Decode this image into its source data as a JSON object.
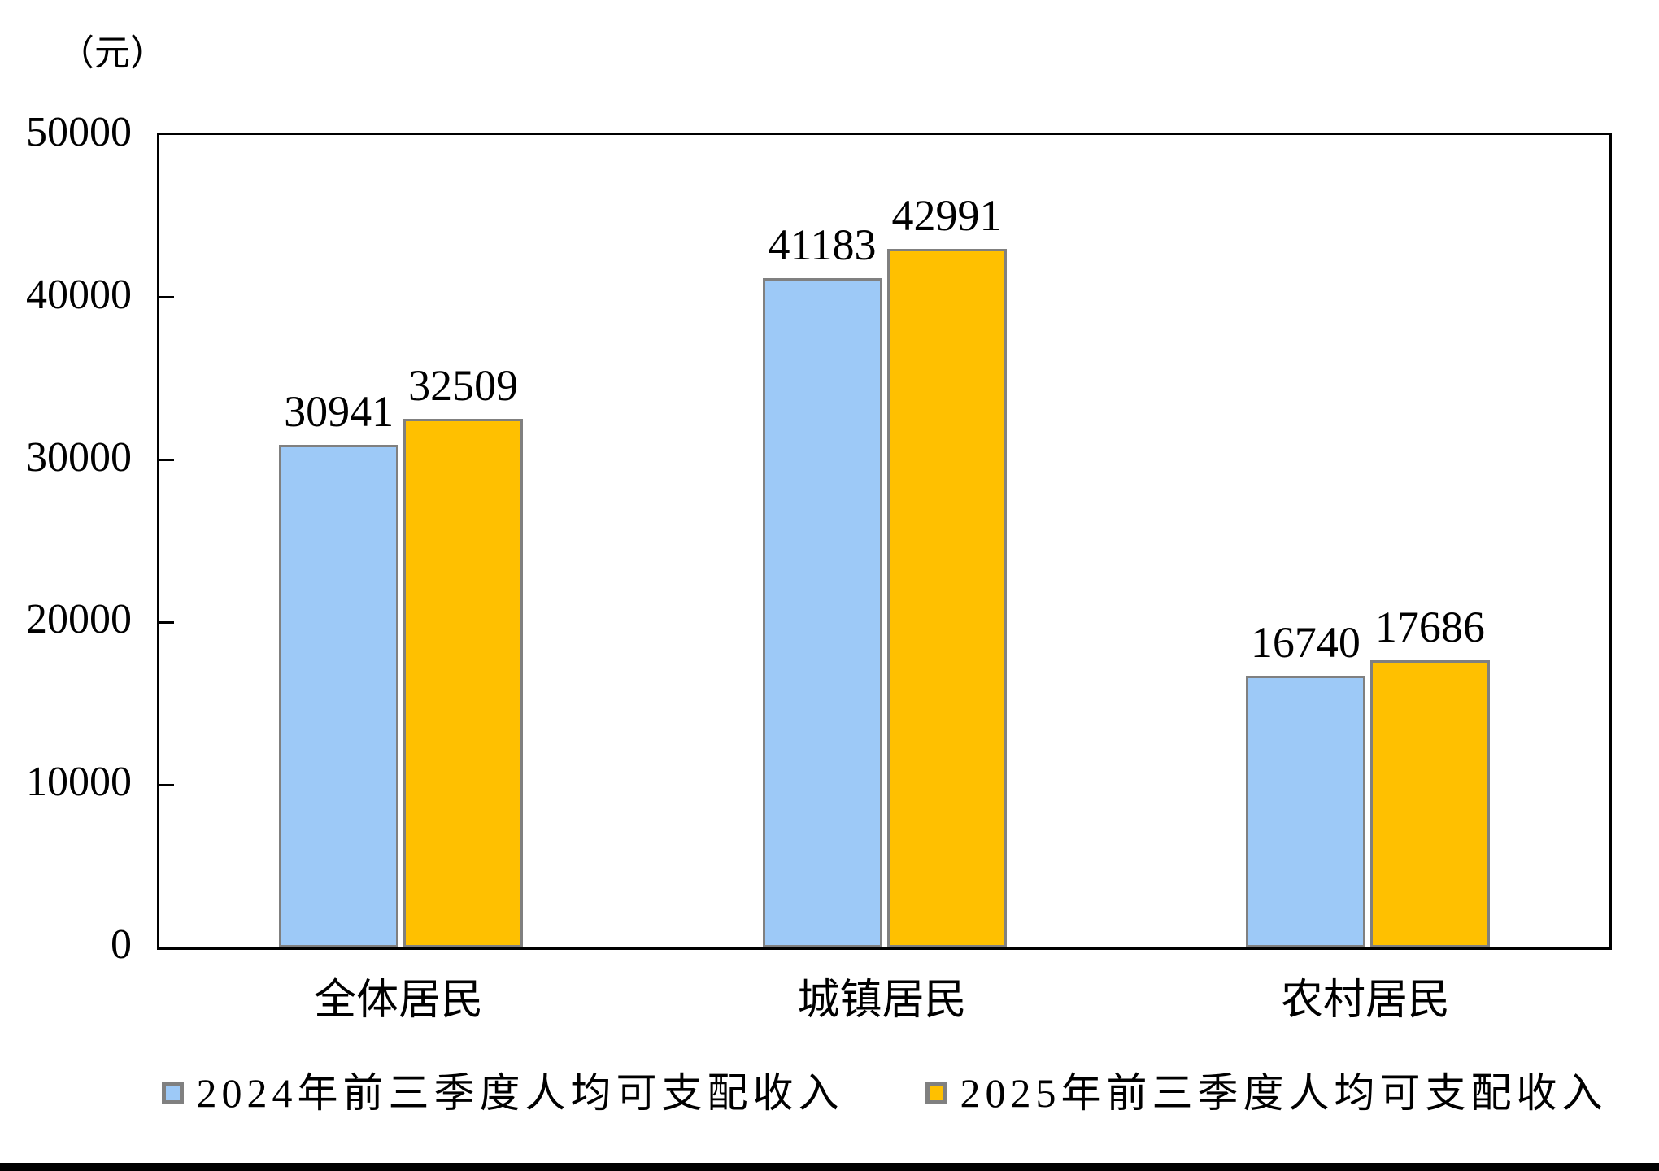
{
  "unit_label": "（元）",
  "colors": {
    "series_2024_fill": "#9DC9F7",
    "series_2025_fill": "#FFC000",
    "bar_border": "#808080",
    "axis": "#000000",
    "footer_bar": "#000000"
  },
  "y_axis": {
    "tick_labels": [
      "50000",
      "40000",
      "30000",
      "20000",
      "10000",
      "0"
    ],
    "tick_values": [
      50000,
      40000,
      30000,
      20000,
      10000,
      0
    ]
  },
  "chart_data": {
    "type": "bar",
    "title": "",
    "unit": "（元）",
    "categories": [
      "全体居民",
      "城镇居民",
      "农村居民"
    ],
    "series": [
      {
        "name": "2024年前三季度人均可支配收入",
        "values": [
          30941,
          41183,
          16740
        ],
        "color": "#9DC9F7"
      },
      {
        "name": "2025年前三季度人均可支配收入",
        "values": [
          32509,
          42991,
          17686
        ],
        "color": "#FFC000"
      }
    ],
    "data_labels": [
      [
        "30941",
        "41183",
        "16740"
      ],
      [
        "32509",
        "42991",
        "17686"
      ]
    ],
    "ylim": [
      0,
      50000
    ],
    "y_tick_interval": 10000,
    "grid": false,
    "legend_position": "bottom"
  }
}
